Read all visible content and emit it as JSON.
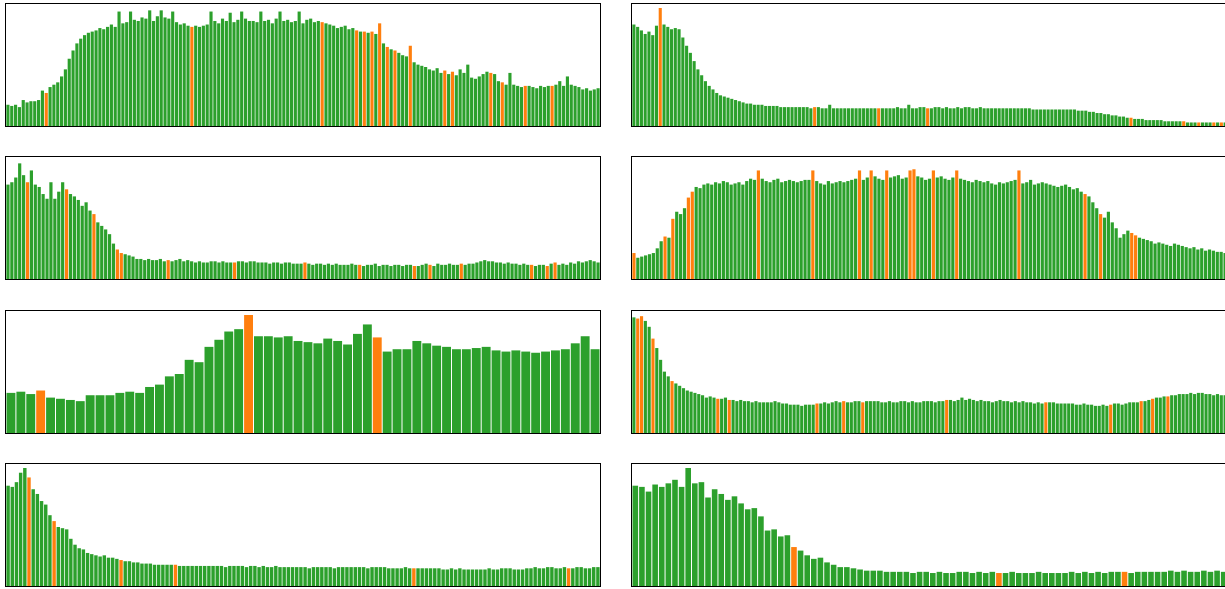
{
  "colors": {
    "normal": "#2ca02c",
    "highlight": "#ff7f0e",
    "frame": "#000000",
    "background": "#ffffff"
  },
  "chart_data": [
    {
      "type": "bar",
      "title": "",
      "xlabel": "",
      "ylabel": "",
      "grid": false,
      "axis_ticks": false,
      "ylim": [
        0,
        1
      ],
      "values": [
        0.18,
        0.17,
        0.18,
        0.16,
        0.22,
        0.2,
        0.21,
        0.21,
        0.22,
        0.3,
        0.28,
        0.33,
        0.35,
        0.37,
        0.42,
        0.48,
        0.57,
        0.64,
        0.7,
        0.74,
        0.77,
        0.79,
        0.8,
        0.81,
        0.83,
        0.82,
        0.84,
        0.86,
        0.84,
        0.97,
        0.87,
        0.88,
        0.97,
        0.9,
        0.89,
        0.92,
        0.91,
        0.98,
        0.89,
        0.93,
        0.98,
        0.92,
        0.91,
        0.97,
        0.88,
        0.86,
        0.87,
        0.85,
        0.84,
        0.85,
        0.84,
        0.85,
        0.86,
        0.97,
        0.89,
        0.87,
        0.91,
        0.89,
        0.96,
        0.88,
        0.9,
        0.97,
        0.91,
        0.89,
        0.89,
        0.88,
        0.97,
        0.89,
        0.9,
        0.87,
        0.91,
        0.97,
        0.89,
        0.9,
        0.88,
        0.89,
        0.97,
        0.87,
        0.9,
        0.91,
        0.88,
        0.89,
        0.88,
        0.87,
        0.86,
        0.85,
        0.83,
        0.84,
        0.85,
        0.82,
        0.83,
        0.81,
        0.8,
        0.8,
        0.79,
        0.8,
        0.78,
        0.87,
        0.7,
        0.67,
        0.65,
        0.64,
        0.62,
        0.6,
        0.59,
        0.68,
        0.54,
        0.52,
        0.51,
        0.5,
        0.48,
        0.47,
        0.49,
        0.45,
        0.47,
        0.44,
        0.46,
        0.43,
        0.48,
        0.45,
        0.52,
        0.41,
        0.4,
        0.42,
        0.44,
        0.46,
        0.45,
        0.44,
        0.38,
        0.37,
        0.35,
        0.45,
        0.35,
        0.34,
        0.33,
        0.34,
        0.34,
        0.33,
        0.32,
        0.34,
        0.33,
        0.34,
        0.34,
        0.35,
        0.38,
        0.34,
        0.42,
        0.35,
        0.34,
        0.33,
        0.31,
        0.32,
        0.3,
        0.31,
        0.32
      ],
      "highlight_indices": [
        10,
        48,
        82,
        91,
        93,
        95,
        97,
        99,
        101,
        105,
        114,
        116,
        126,
        129,
        135,
        142
      ]
    },
    {
      "type": "bar",
      "title": "",
      "xlabel": "",
      "ylabel": "",
      "grid": false,
      "axis_ticks": false,
      "ylim": [
        0,
        1
      ],
      "values": [
        0.86,
        0.84,
        0.81,
        0.78,
        0.8,
        0.77,
        0.85,
        1.0,
        0.86,
        0.84,
        0.82,
        0.83,
        0.82,
        0.75,
        0.68,
        0.62,
        0.55,
        0.48,
        0.43,
        0.38,
        0.34,
        0.31,
        0.28,
        0.26,
        0.25,
        0.24,
        0.23,
        0.22,
        0.21,
        0.2,
        0.19,
        0.19,
        0.18,
        0.18,
        0.18,
        0.17,
        0.17,
        0.17,
        0.17,
        0.16,
        0.16,
        0.16,
        0.16,
        0.16,
        0.16,
        0.16,
        0.16,
        0.15,
        0.16,
        0.16,
        0.15,
        0.15,
        0.18,
        0.15,
        0.15,
        0.15,
        0.15,
        0.15,
        0.15,
        0.15,
        0.15,
        0.15,
        0.15,
        0.15,
        0.15,
        0.15,
        0.15,
        0.15,
        0.15,
        0.15,
        0.16,
        0.15,
        0.15,
        0.18,
        0.15,
        0.15,
        0.16,
        0.16,
        0.15,
        0.15,
        0.16,
        0.16,
        0.15,
        0.16,
        0.15,
        0.15,
        0.16,
        0.15,
        0.16,
        0.16,
        0.15,
        0.15,
        0.16,
        0.15,
        0.15,
        0.15,
        0.15,
        0.15,
        0.15,
        0.15,
        0.15,
        0.15,
        0.15,
        0.15,
        0.15,
        0.15,
        0.14,
        0.14,
        0.14,
        0.14,
        0.14,
        0.14,
        0.14,
        0.14,
        0.14,
        0.14,
        0.14,
        0.14,
        0.13,
        0.13,
        0.13,
        0.12,
        0.12,
        0.11,
        0.11,
        0.1,
        0.1,
        0.09,
        0.09,
        0.08,
        0.08,
        0.07,
        0.07,
        0.06,
        0.06,
        0.06,
        0.05,
        0.05,
        0.05,
        0.05,
        0.05,
        0.04,
        0.04,
        0.04,
        0.04,
        0.04,
        0.04,
        0.03,
        0.03,
        0.03,
        0.03,
        0.03,
        0.03,
        0.03,
        0.03,
        0.03,
        0.03,
        0.03
      ],
      "highlight_indices": [
        7,
        48,
        65,
        78,
        132,
        146,
        150,
        154,
        156
      ]
    },
    {
      "type": "bar",
      "title": "",
      "xlabel": "",
      "ylabel": "",
      "grid": false,
      "axis_ticks": false,
      "ylim": [
        0,
        1
      ],
      "values": [
        0.8,
        0.82,
        0.86,
        0.98,
        0.88,
        0.82,
        0.92,
        0.8,
        0.78,
        0.72,
        0.68,
        0.82,
        0.68,
        0.74,
        0.82,
        0.76,
        0.72,
        0.7,
        0.67,
        0.62,
        0.65,
        0.58,
        0.55,
        0.48,
        0.45,
        0.42,
        0.38,
        0.3,
        0.25,
        0.22,
        0.21,
        0.2,
        0.19,
        0.17,
        0.17,
        0.16,
        0.17,
        0.16,
        0.16,
        0.17,
        0.15,
        0.16,
        0.15,
        0.16,
        0.17,
        0.15,
        0.16,
        0.15,
        0.14,
        0.15,
        0.14,
        0.14,
        0.15,
        0.15,
        0.14,
        0.15,
        0.14,
        0.14,
        0.14,
        0.15,
        0.15,
        0.14,
        0.15,
        0.15,
        0.14,
        0.14,
        0.14,
        0.13,
        0.14,
        0.14,
        0.13,
        0.14,
        0.14,
        0.13,
        0.13,
        0.13,
        0.14,
        0.13,
        0.12,
        0.13,
        0.13,
        0.12,
        0.13,
        0.12,
        0.13,
        0.12,
        0.12,
        0.12,
        0.13,
        0.12,
        0.12,
        0.11,
        0.12,
        0.12,
        0.13,
        0.11,
        0.12,
        0.12,
        0.11,
        0.12,
        0.12,
        0.11,
        0.12,
        0.12,
        0.11,
        0.11,
        0.12,
        0.13,
        0.12,
        0.11,
        0.13,
        0.12,
        0.12,
        0.13,
        0.12,
        0.12,
        0.13,
        0.12,
        0.13,
        0.13,
        0.14,
        0.15,
        0.16,
        0.15,
        0.15,
        0.14,
        0.14,
        0.13,
        0.14,
        0.13,
        0.13,
        0.12,
        0.13,
        0.12,
        0.12,
        0.11,
        0.12,
        0.12,
        0.11,
        0.13,
        0.14,
        0.12,
        0.13,
        0.12,
        0.14,
        0.13,
        0.15,
        0.14,
        0.15,
        0.16,
        0.15,
        0.14
      ],
      "highlight_indices": [
        5,
        15,
        22,
        28,
        29,
        41,
        58,
        76,
        90,
        104,
        108,
        116,
        134,
        138,
        140
      ]
    },
    {
      "type": "bar",
      "title": "",
      "xlabel": "",
      "ylabel": "",
      "grid": false,
      "axis_ticks": false,
      "ylim": [
        0,
        1
      ],
      "values": [
        0.22,
        0.18,
        0.19,
        0.2,
        0.21,
        0.22,
        0.26,
        0.32,
        0.36,
        0.35,
        0.51,
        0.57,
        0.55,
        0.6,
        0.69,
        0.74,
        0.78,
        0.77,
        0.8,
        0.81,
        0.8,
        0.82,
        0.81,
        0.83,
        0.82,
        0.8,
        0.81,
        0.82,
        0.8,
        0.83,
        0.85,
        0.84,
        0.92,
        0.85,
        0.83,
        0.82,
        0.84,
        0.85,
        0.82,
        0.83,
        0.84,
        0.83,
        0.82,
        0.83,
        0.84,
        0.84,
        0.92,
        0.83,
        0.81,
        0.8,
        0.83,
        0.81,
        0.82,
        0.83,
        0.82,
        0.83,
        0.84,
        0.85,
        0.92,
        0.84,
        0.86,
        0.92,
        0.87,
        0.85,
        0.84,
        0.92,
        0.86,
        0.87,
        0.88,
        0.85,
        0.86,
        0.92,
        0.93,
        0.87,
        0.86,
        0.84,
        0.85,
        0.92,
        0.86,
        0.87,
        0.85,
        0.84,
        0.86,
        0.92,
        0.85,
        0.84,
        0.83,
        0.82,
        0.84,
        0.83,
        0.82,
        0.83,
        0.81,
        0.8,
        0.82,
        0.81,
        0.82,
        0.83,
        0.84,
        0.92,
        0.81,
        0.82,
        0.84,
        0.8,
        0.81,
        0.82,
        0.81,
        0.8,
        0.79,
        0.78,
        0.79,
        0.8,
        0.78,
        0.76,
        0.77,
        0.74,
        0.72,
        0.7,
        0.65,
        0.6,
        0.55,
        0.52,
        0.57,
        0.48,
        0.43,
        0.35,
        0.38,
        0.41,
        0.39,
        0.37,
        0.35,
        0.34,
        0.33,
        0.32,
        0.3,
        0.31,
        0.3,
        0.29,
        0.28,
        0.3,
        0.29,
        0.28,
        0.27,
        0.26,
        0.27,
        0.25,
        0.26,
        0.24,
        0.25,
        0.24,
        0.23,
        0.23,
        0.22
      ],
      "highlight_indices": [
        0,
        8,
        10,
        14,
        15,
        32,
        46,
        58,
        61,
        65,
        71,
        72,
        77,
        83,
        99,
        116,
        120,
        128,
        129
      ]
    },
    {
      "type": "bar",
      "title": "",
      "xlabel": "",
      "ylabel": "",
      "grid": false,
      "axis_ticks": false,
      "ylim": [
        0,
        1
      ],
      "values": [
        0.34,
        0.35,
        0.33,
        0.36,
        0.3,
        0.29,
        0.28,
        0.27,
        0.32,
        0.32,
        0.32,
        0.34,
        0.35,
        0.34,
        0.39,
        0.41,
        0.48,
        0.5,
        0.62,
        0.6,
        0.73,
        0.79,
        0.86,
        0.88,
        1.0,
        0.82,
        0.82,
        0.81,
        0.82,
        0.78,
        0.77,
        0.76,
        0.8,
        0.78,
        0.75,
        0.84,
        0.92,
        0.81,
        0.69,
        0.71,
        0.71,
        0.78,
        0.76,
        0.74,
        0.73,
        0.71,
        0.71,
        0.72,
        0.73,
        0.7,
        0.69,
        0.7,
        0.69,
        0.68,
        0.69,
        0.7,
        0.71,
        0.76,
        0.82,
        0.71
      ],
      "highlight_indices": [
        3,
        24,
        37
      ]
    },
    {
      "type": "bar",
      "title": "",
      "xlabel": "",
      "ylabel": "",
      "grid": false,
      "axis_ticks": false,
      "ylim": [
        0,
        1
      ],
      "values": [
        0.98,
        0.97,
        0.99,
        0.95,
        0.9,
        0.8,
        0.72,
        0.62,
        0.52,
        0.48,
        0.44,
        0.42,
        0.4,
        0.38,
        0.36,
        0.35,
        0.34,
        0.33,
        0.32,
        0.3,
        0.31,
        0.3,
        0.29,
        0.29,
        0.3,
        0.28,
        0.28,
        0.27,
        0.28,
        0.27,
        0.27,
        0.26,
        0.27,
        0.26,
        0.26,
        0.26,
        0.26,
        0.27,
        0.26,
        0.25,
        0.25,
        0.24,
        0.24,
        0.24,
        0.23,
        0.24,
        0.24,
        0.24,
        0.25,
        0.25,
        0.26,
        0.25,
        0.26,
        0.27,
        0.26,
        0.27,
        0.26,
        0.26,
        0.27,
        0.27,
        0.26,
        0.27,
        0.27,
        0.27,
        0.27,
        0.26,
        0.26,
        0.27,
        0.26,
        0.26,
        0.27,
        0.27,
        0.26,
        0.27,
        0.26,
        0.26,
        0.27,
        0.27,
        0.27,
        0.26,
        0.27,
        0.27,
        0.28,
        0.28,
        0.27,
        0.28,
        0.3,
        0.28,
        0.29,
        0.28,
        0.27,
        0.28,
        0.27,
        0.27,
        0.26,
        0.27,
        0.28,
        0.27,
        0.27,
        0.26,
        0.27,
        0.26,
        0.27,
        0.26,
        0.26,
        0.25,
        0.26,
        0.25,
        0.26,
        0.26,
        0.26,
        0.25,
        0.25,
        0.25,
        0.25,
        0.25,
        0.24,
        0.24,
        0.25,
        0.24,
        0.24,
        0.23,
        0.23,
        0.24,
        0.23,
        0.24,
        0.25,
        0.25,
        0.24,
        0.25,
        0.26,
        0.26,
        0.26,
        0.27,
        0.27,
        0.28,
        0.29,
        0.3,
        0.3,
        0.31,
        0.31,
        0.32,
        0.32,
        0.33,
        0.33,
        0.33,
        0.34,
        0.33,
        0.34,
        0.34,
        0.33,
        0.33,
        0.32,
        0.33,
        0.32,
        0.32
      ],
      "highlight_indices": [
        1,
        2,
        5,
        10,
        22,
        25,
        48,
        55,
        60,
        82,
        108,
        125,
        133,
        136,
        140
      ]
    },
    {
      "type": "bar",
      "title": "",
      "xlabel": "",
      "ylabel": "",
      "grid": false,
      "axis_ticks": false,
      "ylim": [
        0,
        1
      ],
      "values": [
        0.85,
        0.84,
        0.88,
        0.96,
        1.0,
        0.92,
        0.82,
        0.78,
        0.72,
        0.69,
        0.6,
        0.55,
        0.5,
        0.49,
        0.48,
        0.4,
        0.35,
        0.32,
        0.31,
        0.28,
        0.27,
        0.26,
        0.25,
        0.26,
        0.24,
        0.24,
        0.23,
        0.22,
        0.21,
        0.21,
        0.2,
        0.2,
        0.19,
        0.19,
        0.19,
        0.18,
        0.18,
        0.18,
        0.18,
        0.18,
        0.18,
        0.17,
        0.17,
        0.17,
        0.17,
        0.17,
        0.17,
        0.17,
        0.17,
        0.17,
        0.17,
        0.17,
        0.16,
        0.17,
        0.17,
        0.17,
        0.17,
        0.16,
        0.17,
        0.17,
        0.16,
        0.17,
        0.16,
        0.16,
        0.17,
        0.16,
        0.16,
        0.16,
        0.16,
        0.16,
        0.16,
        0.16,
        0.15,
        0.16,
        0.16,
        0.16,
        0.16,
        0.16,
        0.15,
        0.16,
        0.16,
        0.16,
        0.16,
        0.16,
        0.16,
        0.16,
        0.15,
        0.16,
        0.16,
        0.16,
        0.16,
        0.15,
        0.15,
        0.15,
        0.15,
        0.16,
        0.15,
        0.15,
        0.15,
        0.15,
        0.15,
        0.15,
        0.15,
        0.15,
        0.14,
        0.14,
        0.15,
        0.14,
        0.15,
        0.14,
        0.14,
        0.14,
        0.14,
        0.14,
        0.14,
        0.15,
        0.14,
        0.14,
        0.15,
        0.15,
        0.15,
        0.14,
        0.14,
        0.14,
        0.15,
        0.15,
        0.16,
        0.15,
        0.15,
        0.16,
        0.16,
        0.15,
        0.15,
        0.16,
        0.15,
        0.15,
        0.16,
        0.16,
        0.15,
        0.15,
        0.16,
        0.16
      ],
      "highlight_indices": [
        5,
        11,
        27,
        40,
        97,
        134,
        145
      ]
    },
    {
      "type": "bar",
      "title": "",
      "xlabel": "",
      "ylabel": "",
      "grid": false,
      "axis_ticks": false,
      "ylim": [
        0,
        1
      ],
      "values": [
        0.85,
        0.84,
        0.8,
        0.86,
        0.84,
        0.87,
        0.9,
        0.84,
        1.0,
        0.87,
        0.88,
        0.75,
        0.82,
        0.78,
        0.73,
        0.76,
        0.7,
        0.65,
        0.66,
        0.59,
        0.47,
        0.48,
        0.42,
        0.43,
        0.33,
        0.3,
        0.26,
        0.23,
        0.24,
        0.2,
        0.18,
        0.16,
        0.16,
        0.15,
        0.14,
        0.13,
        0.13,
        0.13,
        0.12,
        0.12,
        0.12,
        0.12,
        0.11,
        0.12,
        0.12,
        0.11,
        0.12,
        0.11,
        0.11,
        0.12,
        0.12,
        0.11,
        0.12,
        0.11,
        0.12,
        0.11,
        0.11,
        0.12,
        0.11,
        0.11,
        0.11,
        0.12,
        0.11,
        0.11,
        0.11,
        0.11,
        0.12,
        0.11,
        0.12,
        0.11,
        0.12,
        0.11,
        0.12,
        0.12,
        0.12,
        0.11,
        0.12,
        0.12,
        0.12,
        0.12,
        0.12,
        0.13,
        0.12,
        0.13,
        0.12,
        0.12,
        0.13,
        0.12,
        0.13,
        0.12
      ],
      "highlight_indices": [
        24,
        55,
        74
      ]
    }
  ]
}
